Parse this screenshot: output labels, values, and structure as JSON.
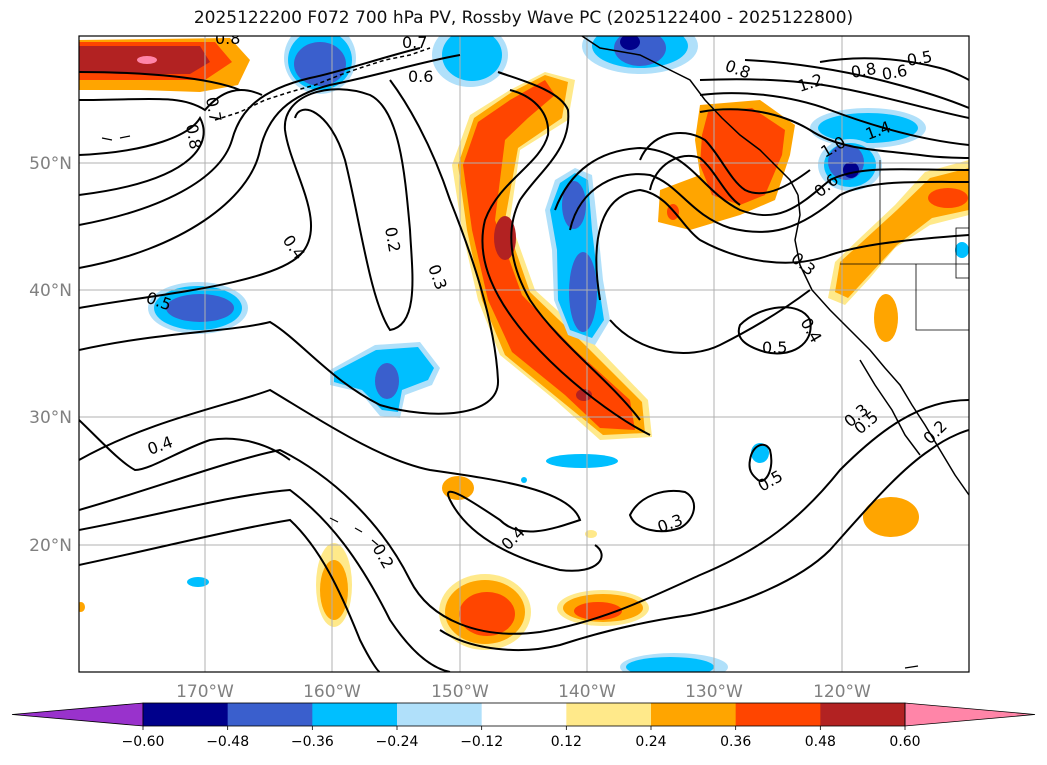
{
  "title": "2025122200 F072 700 hPa PV, Rossby Wave PC (2025122400 - 2025122800)",
  "map": {
    "lon_range": [
      -180,
      -110
    ],
    "lat_range": [
      10,
      60
    ],
    "lat_labels": [
      "50°N",
      "40°N",
      "30°N",
      "20°N"
    ],
    "lon_labels": [
      "170°W",
      "160°W",
      "150°W",
      "140°W",
      "130°W",
      "120°W"
    ],
    "contour_labels": [
      "0.8",
      "0.7",
      "0.8",
      "0.7",
      "0.6",
      "0.8",
      "1.2",
      "0.8",
      "0.6",
      "0.5",
      "1.4",
      "1.0",
      "0.6",
      "0.4",
      "0.2",
      "0.3",
      "0.5",
      "0.3",
      "0.4",
      "0.5",
      "0.4",
      "0.2",
      "0.4",
      "0.3",
      "0.5",
      "0.5",
      "0.3",
      "0.2"
    ]
  },
  "colorbar": {
    "ticks": [
      "−0.60",
      "−0.48",
      "−0.36",
      "−0.24",
      "−0.12",
      "0.12",
      "0.24",
      "0.36",
      "0.48",
      "0.60"
    ],
    "colors": [
      "#9932cc",
      "#00008b",
      "#3a5fcd",
      "#00bfff",
      "#b0e0fa",
      "#ffffff",
      "#ffe98a",
      "#ffa500",
      "#ff4500",
      "#b22222",
      "#ff85a8"
    ]
  }
}
